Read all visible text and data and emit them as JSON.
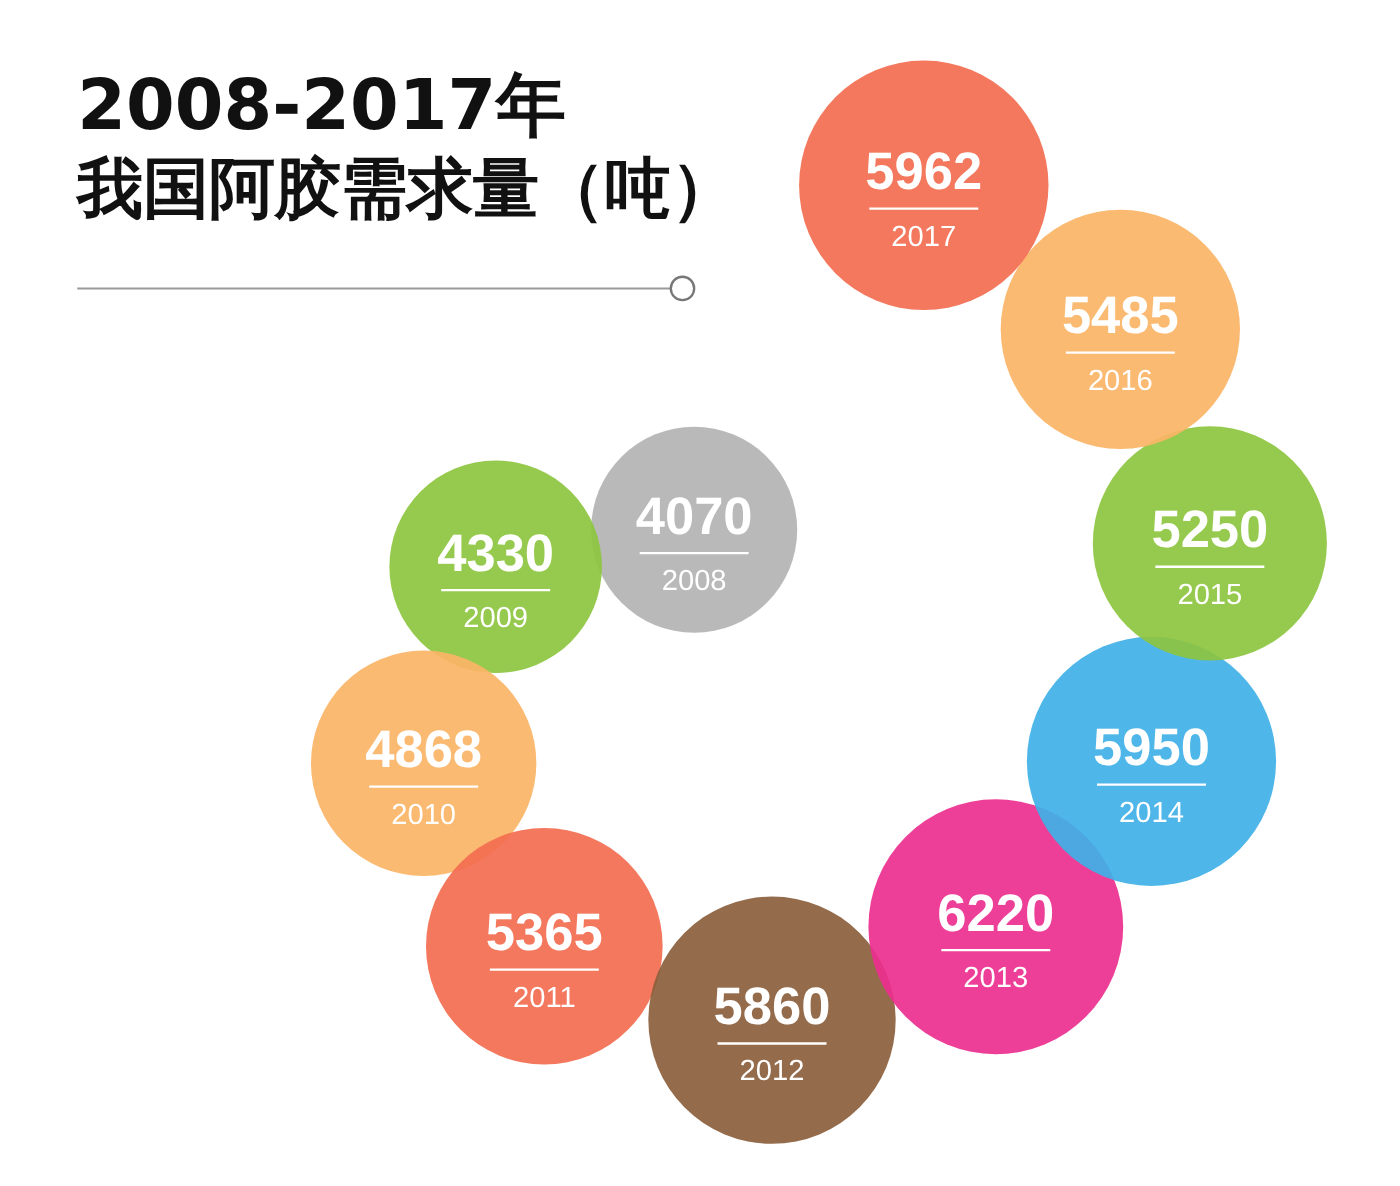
{
  "chart_data": {
    "type": "other",
    "title": "2008-2017年",
    "subtitle": "我国阿胶需求量（吨）",
    "categories": [
      "2008",
      "2009",
      "2010",
      "2011",
      "2012",
      "2013",
      "2014",
      "2015",
      "2016",
      "2017"
    ],
    "values": [
      4070,
      4330,
      4868,
      5365,
      5860,
      6220,
      5950,
      5250,
      5485,
      5962
    ],
    "colors": [
      "#b3b3b3",
      "#8dc63f",
      "#fbb466",
      "#f26c4f",
      "#8b5e3c",
      "#ec2f8e",
      "#3fb0e6",
      "#8dc63f",
      "#fbb466",
      "#f26c4f"
    ],
    "data_labels": true
  }
}
